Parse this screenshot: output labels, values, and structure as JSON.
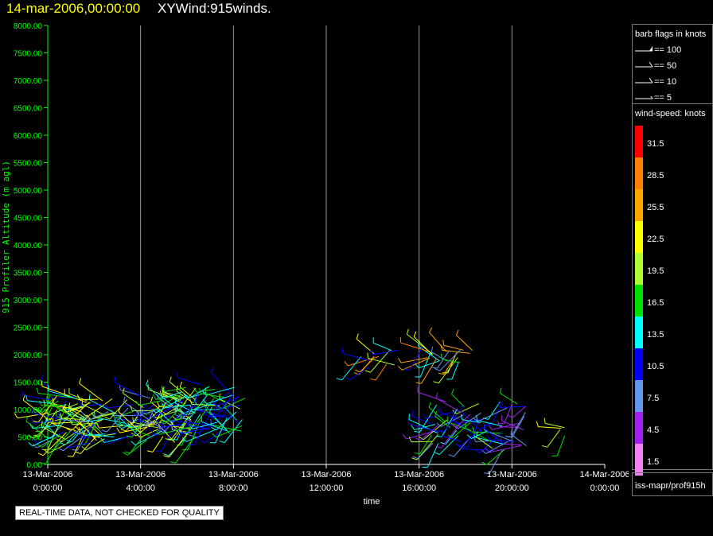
{
  "header": {
    "date": "14-mar-2006,00:00:00",
    "name": "XYWind:915winds."
  },
  "chart_data": {
    "type": "scatter",
    "ylabel": "915 Profiler Altitude (m agl)",
    "xlabel": "time",
    "ylim": [
      0,
      8000
    ],
    "yticks": [
      "0.00",
      "500.00",
      "1000.00",
      "1500.00",
      "2000.00",
      "2500.00",
      "3000.00",
      "3500.00",
      "4000.00",
      "4500.00",
      "5000.00",
      "5500.00",
      "6000.00",
      "6500.00",
      "7000.00",
      "7500.00",
      "8000.00"
    ],
    "xlim_hours": [
      0,
      24
    ],
    "xticks": [
      {
        "hour": 0,
        "date": "13-Mar-2006",
        "time": "0:00:00"
      },
      {
        "hour": 4,
        "date": "13-Mar-2006",
        "time": "4:00:00"
      },
      {
        "hour": 8,
        "date": "13-Mar-2006",
        "time": "8:00:00"
      },
      {
        "hour": 12,
        "date": "13-Mar-2006",
        "time": "12:00:00"
      },
      {
        "hour": 16,
        "date": "13-Mar-2006",
        "time": "16:00:00"
      },
      {
        "hour": 20,
        "date": "13-Mar-2006",
        "time": "20:00:00"
      },
      {
        "hour": 24,
        "date": "14-Mar-2006",
        "time": "0:00:00"
      }
    ],
    "grid": "vertical",
    "clusters": [
      {
        "t0": 0.0,
        "t1": 6.5,
        "h0": 400,
        "h1": 1250,
        "n": 170,
        "s0": 7,
        "s1": 24
      },
      {
        "t0": 5.8,
        "t1": 8.5,
        "h0": 550,
        "h1": 1450,
        "n": 60,
        "s0": 9,
        "s1": 19
      },
      {
        "t0": 8.0,
        "t1": 8.5,
        "h0": 1200,
        "h1": 1350,
        "n": 4,
        "s0": 9,
        "s1": 13
      },
      {
        "t0": 13.4,
        "t1": 15.6,
        "h0": 1750,
        "h1": 2100,
        "n": 12,
        "s0": 10,
        "s1": 32
      },
      {
        "t0": 16.0,
        "t1": 18.5,
        "h0": 1850,
        "h1": 2150,
        "n": 22,
        "s0": 8,
        "s1": 28
      },
      {
        "t0": 16.5,
        "t1": 20.8,
        "h0": 250,
        "h1": 1150,
        "n": 70,
        "s0": 3,
        "s1": 20
      },
      {
        "t0": 21.8,
        "t1": 22.6,
        "h0": 450,
        "h1": 700,
        "n": 4,
        "s0": 9,
        "s1": 22
      }
    ]
  },
  "legend": {
    "barb_title": "barb flags in knots",
    "barbs": [
      {
        "label": "== 100"
      },
      {
        "label": "== 50"
      },
      {
        "label": "== 10"
      },
      {
        "label": "== 5"
      }
    ],
    "speed_title": "wind-speed: knots",
    "colorbar": [
      {
        "label": "31.5",
        "color": "#ff0000"
      },
      {
        "label": "28.5",
        "color": "#ff7f00"
      },
      {
        "label": "25.5",
        "color": "#ffa500"
      },
      {
        "label": "22.5",
        "color": "#ffff00"
      },
      {
        "label": "19.5",
        "color": "#adff2f"
      },
      {
        "label": "16.5",
        "color": "#00e000"
      },
      {
        "label": "13.5",
        "color": "#00ffff"
      },
      {
        "label": "10.5",
        "color": "#0000ff"
      },
      {
        "label": "7.5",
        "color": "#6495ed"
      },
      {
        "label": "4.5",
        "color": "#a020f0"
      },
      {
        "label": "1.5",
        "color": "#ee82ee"
      }
    ],
    "source": "iss-mapr/prof915h"
  },
  "qc_note": "REAL-TIME DATA, NOT CHECKED FOR QUALITY"
}
